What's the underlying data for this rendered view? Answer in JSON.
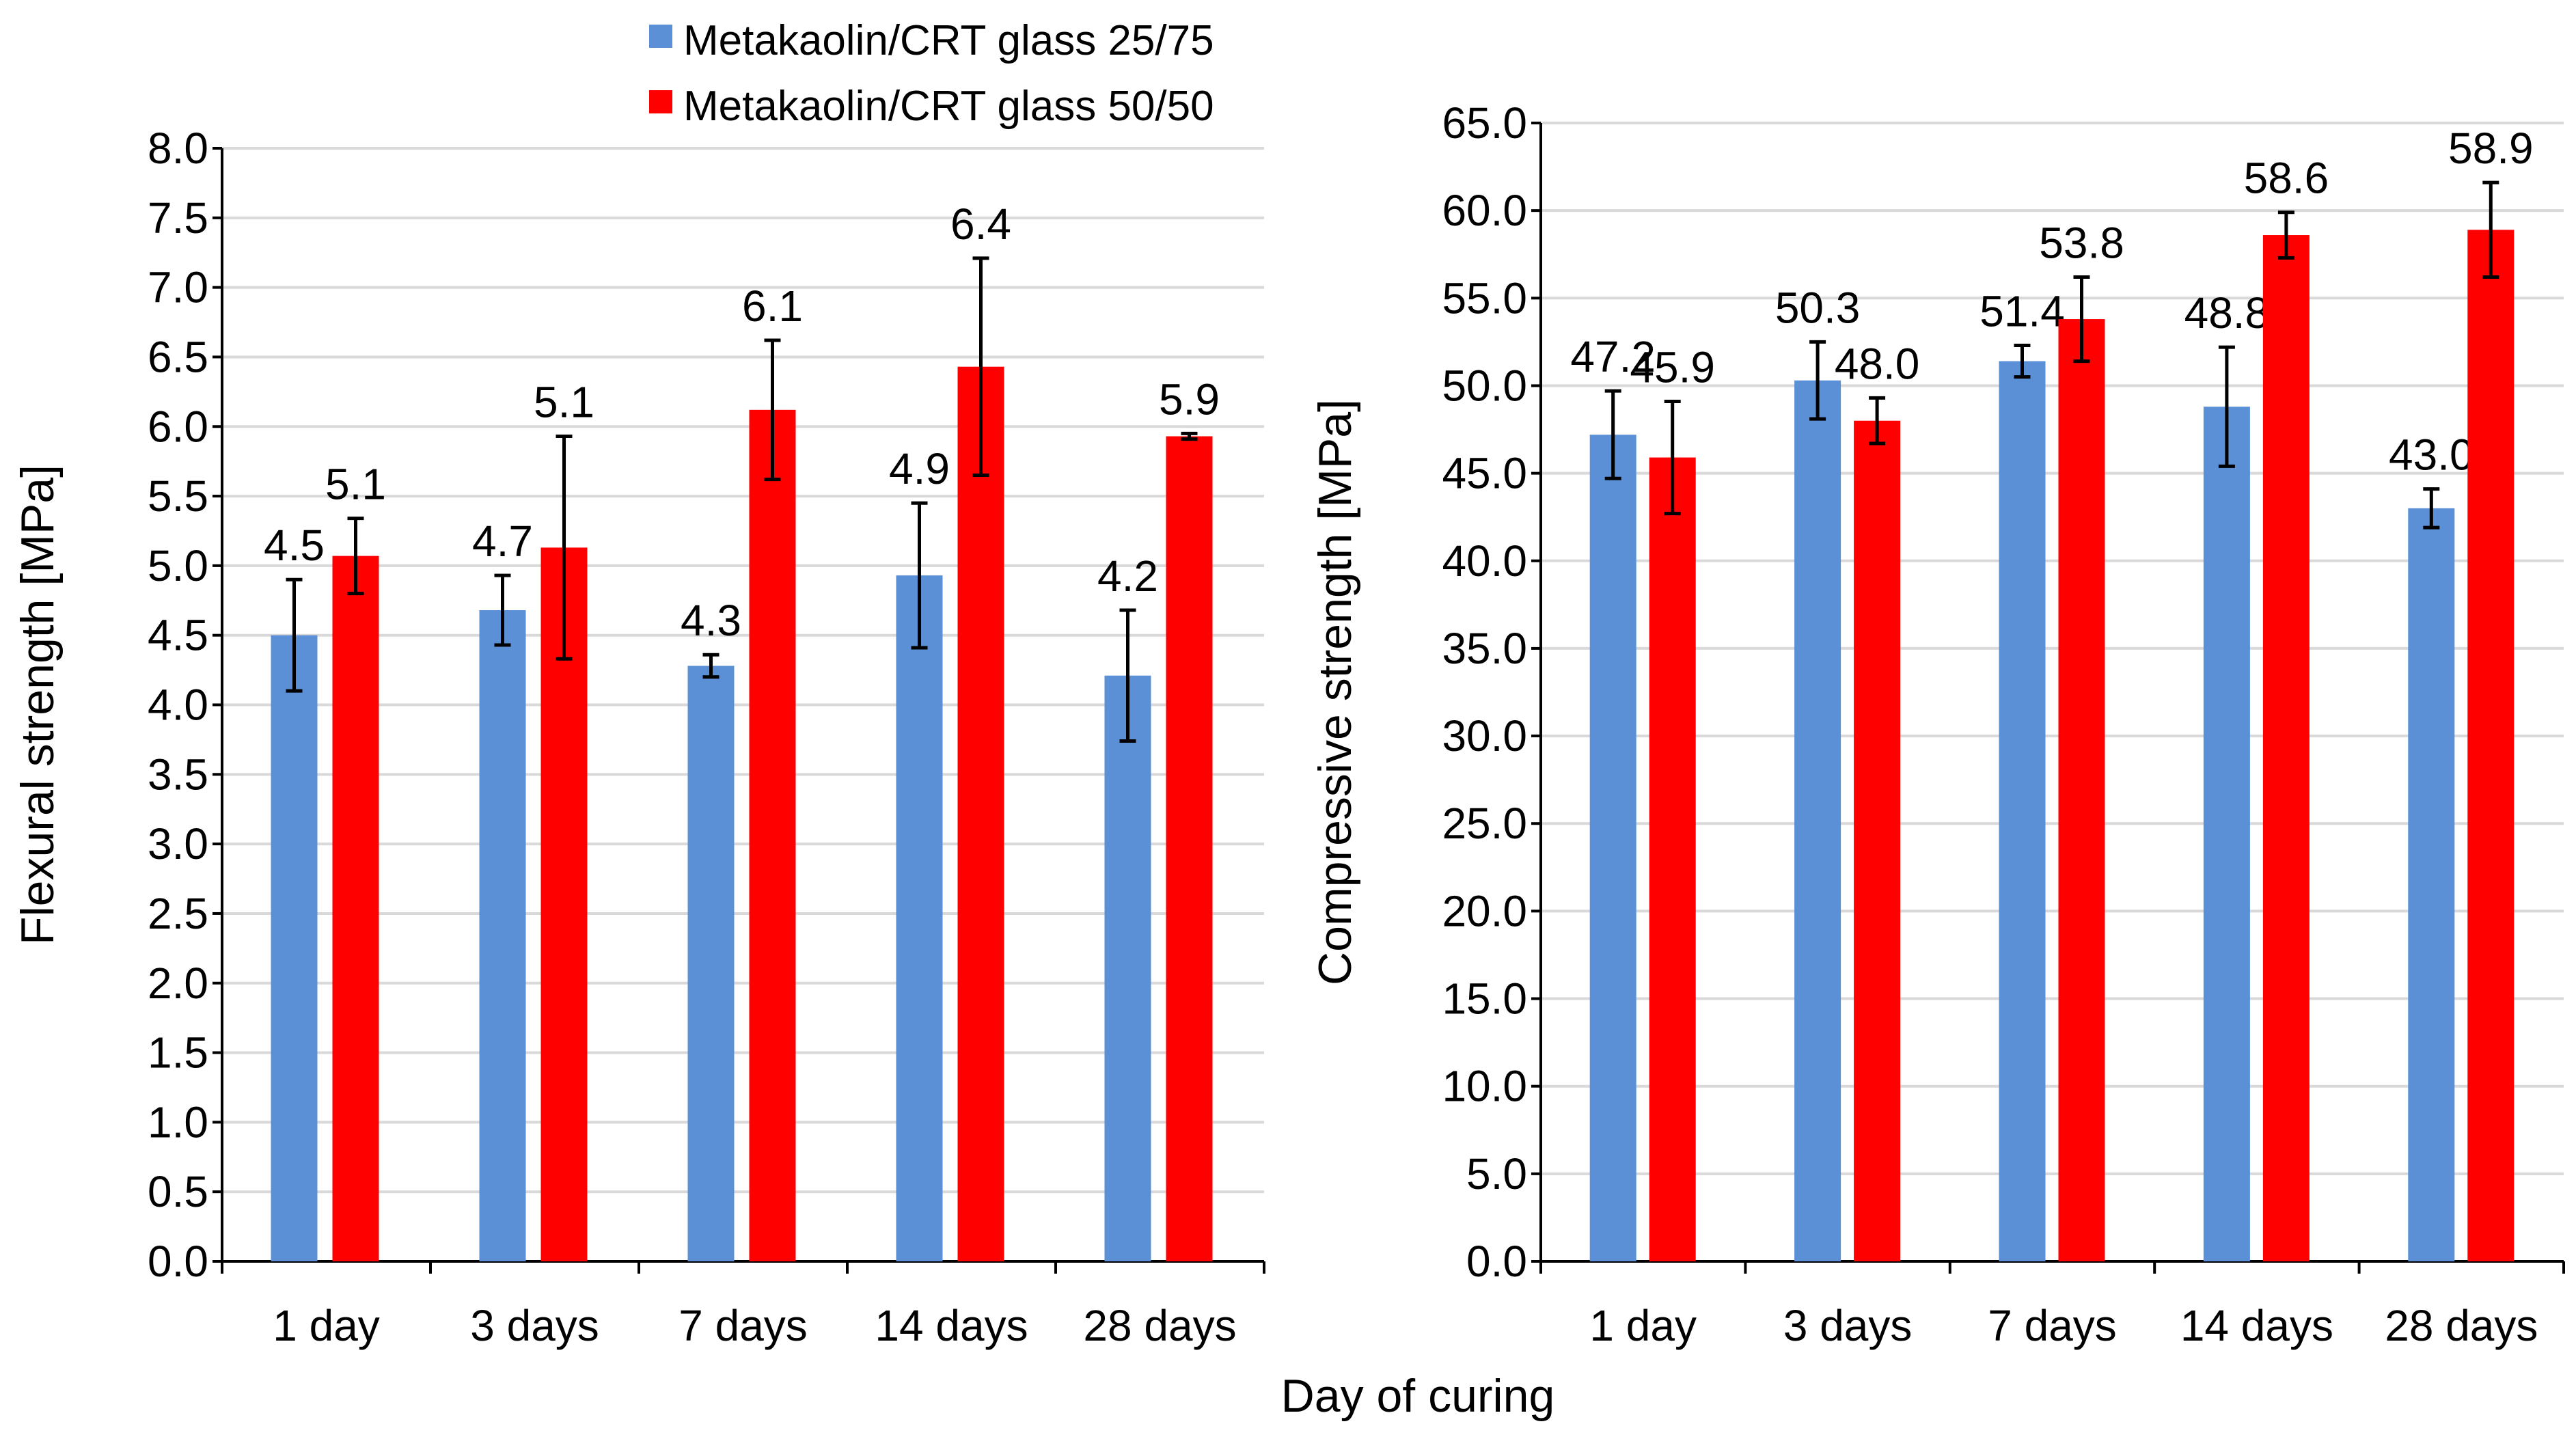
{
  "legend": {
    "series_a": "Metakaolin/CRT glass 25/75",
    "series_b": "Metakaolin/CRT glass 50/50"
  },
  "shared_xlabel": "Day of curing",
  "colors": {
    "series_a": "#5b8fd6",
    "series_b": "#ff0000"
  },
  "chart_data": [
    {
      "type": "bar",
      "title": "",
      "xlabel": "Day of curing",
      "ylabel": "Flexural strength [MPa]",
      "ylim": [
        0,
        8
      ],
      "ystep": 0.5,
      "ytick_labels": [
        "0.0",
        "0.5",
        "1.0",
        "1.5",
        "2.0",
        "2.5",
        "3.0",
        "3.5",
        "4.0",
        "4.5",
        "5.0",
        "5.5",
        "6.0",
        "6.5",
        "7.0",
        "7.5",
        "8.0"
      ],
      "grid": true,
      "categories": [
        "1 day",
        "3 days",
        "7 days",
        "14 days",
        "28 days"
      ],
      "series": [
        {
          "name": "Metakaolin/CRT glass 25/75",
          "values": [
            4.5,
            4.68,
            4.28,
            4.93,
            4.21
          ],
          "errors": [
            0.4,
            0.25,
            0.08,
            0.52,
            0.47
          ],
          "labels": [
            "4.5",
            "4.7",
            "4.3",
            "4.9",
            "4.2"
          ]
        },
        {
          "name": "Metakaolin/CRT glass 50/50",
          "values": [
            5.07,
            5.13,
            6.12,
            6.43,
            5.93
          ],
          "errors": [
            0.27,
            0.8,
            0.5,
            0.78,
            0.02
          ],
          "labels": [
            "5.1",
            "5.1",
            "6.1",
            "6.4",
            "5.9"
          ]
        }
      ]
    },
    {
      "type": "bar",
      "title": "",
      "xlabel": "Day of curing",
      "ylabel": "Compressive strength [MPa]",
      "ylim": [
        0,
        65
      ],
      "ystep": 5,
      "ytick_labels": [
        "0.0",
        "5.0",
        "10.0",
        "15.0",
        "20.0",
        "25.0",
        "30.0",
        "35.0",
        "40.0",
        "45.0",
        "50.0",
        "55.0",
        "60.0",
        "65.0"
      ],
      "grid": true,
      "categories": [
        "1 day",
        "3 days",
        "7 days",
        "14 days",
        "28 days"
      ],
      "series": [
        {
          "name": "Metakaolin/CRT glass 25/75",
          "values": [
            47.2,
            50.3,
            51.4,
            48.8,
            43.0
          ],
          "errors": [
            2.5,
            2.2,
            0.9,
            3.4,
            1.1
          ],
          "labels": [
            "47.2",
            "50.3",
            "51.4",
            "48.8",
            "43.0"
          ]
        },
        {
          "name": "Metakaolin/CRT glass 50/50",
          "values": [
            45.9,
            48.0,
            53.8,
            58.6,
            58.9
          ],
          "errors": [
            3.2,
            1.3,
            2.4,
            1.3,
            2.7
          ],
          "labels": [
            "45.9",
            "48.0",
            "53.8",
            "58.6",
            "58.9"
          ]
        }
      ]
    }
  ]
}
